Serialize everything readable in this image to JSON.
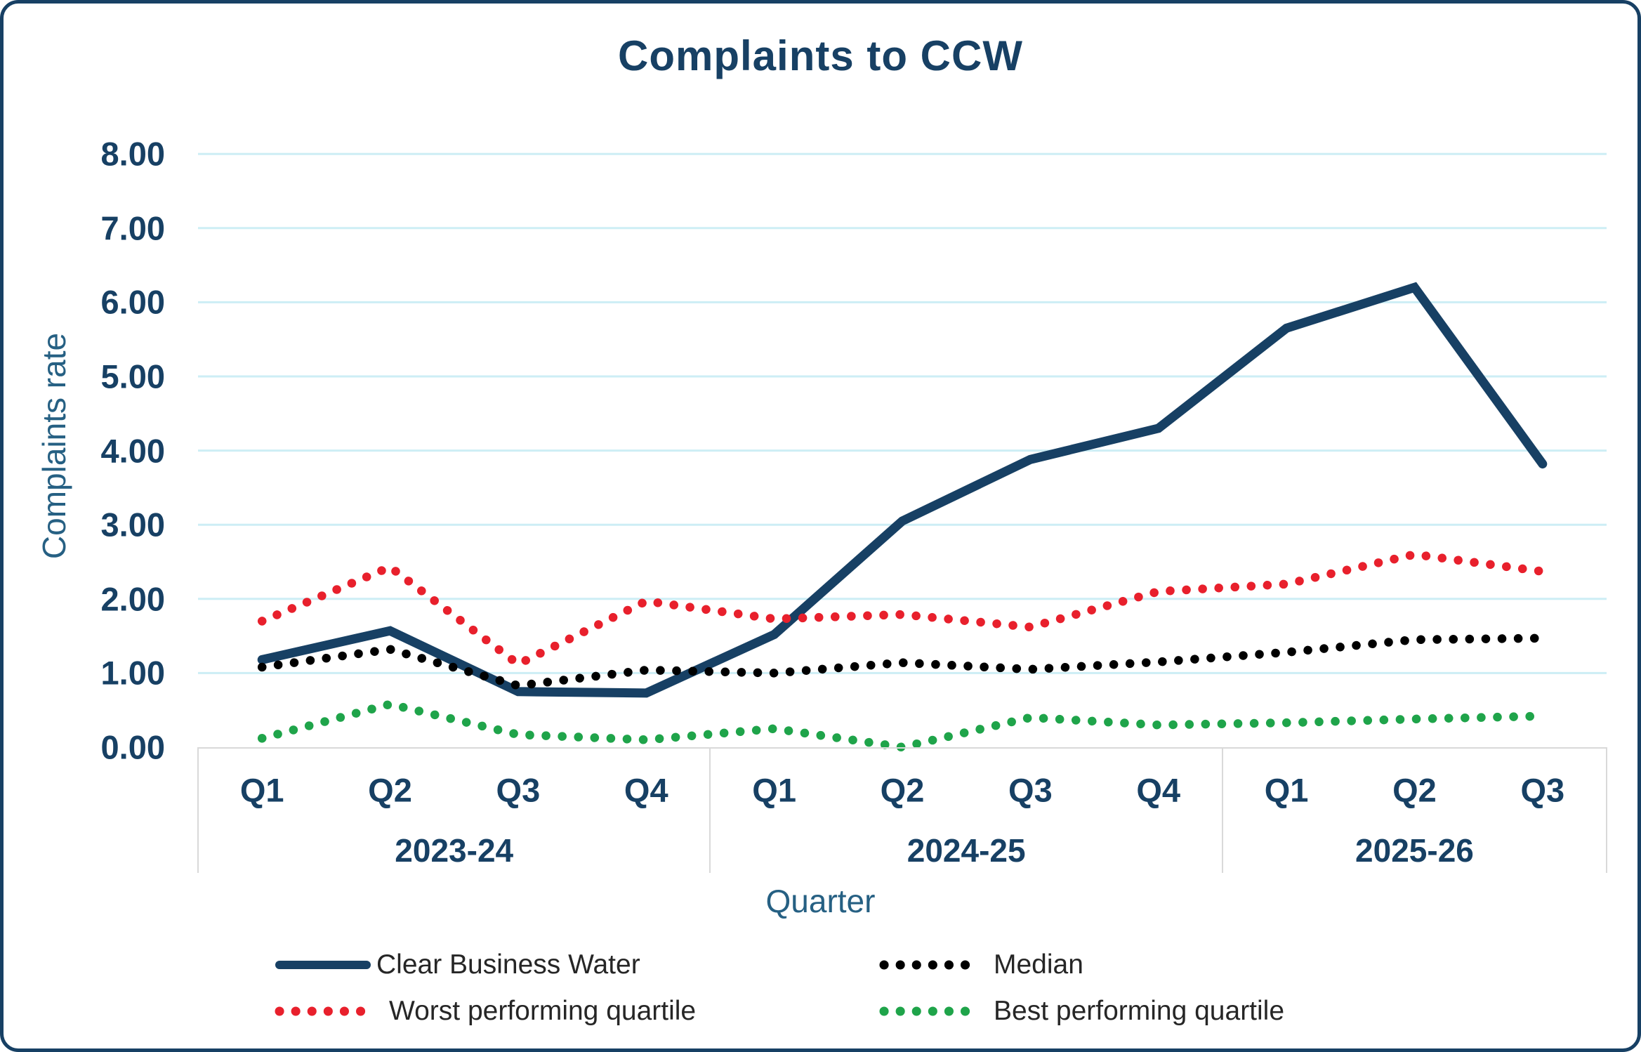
{
  "title": "Complaints to CCW",
  "y_axis": {
    "label": "Complaints rate",
    "ticks": [
      "8.00",
      "7.00",
      "6.00",
      "5.00",
      "4.00",
      "3.00",
      "2.00",
      "1.00",
      "0.00"
    ]
  },
  "x_axis": {
    "label": "Quarter",
    "groups": [
      {
        "label": "2023-24",
        "quarters": [
          "Q1",
          "Q2",
          "Q3",
          "Q4"
        ]
      },
      {
        "label": "2024-25",
        "quarters": [
          "Q1",
          "Q2",
          "Q3",
          "Q4"
        ]
      },
      {
        "label": "2025-26",
        "quarters": [
          "Q1",
          "Q2",
          "Q3"
        ]
      }
    ]
  },
  "legend": {
    "items": [
      {
        "label": "Clear Business Water",
        "style": "solid",
        "color": "#174064"
      },
      {
        "label": "Median",
        "style": "dotted",
        "color": "#000000"
      },
      {
        "label": "Worst performing quartile",
        "style": "dotted",
        "color": "#e8202c"
      },
      {
        "label": "Best performing quartile",
        "style": "dotted",
        "color": "#1fa44a"
      }
    ]
  },
  "colors": {
    "navy": "#174064",
    "red": "#e8202c",
    "green": "#1fa44a",
    "black": "#000000",
    "gridline": "#cdeef5",
    "strip_border": "#d9d9d9",
    "axis_title_text": "#266083",
    "legend_text": "#262626"
  },
  "chart_data": {
    "type": "line",
    "title": "Complaints to CCW",
    "xlabel": "Quarter",
    "ylabel": "Complaints rate",
    "ylim": [
      0,
      8
    ],
    "y_tick_step": 1.0,
    "grid": "horizontal",
    "legend_position": "bottom",
    "categories": [
      "Q1",
      "Q2",
      "Q3",
      "Q4",
      "Q1",
      "Q2",
      "Q3",
      "Q4",
      "Q1",
      "Q2",
      "Q3"
    ],
    "category_groups": [
      {
        "label": "2023-24",
        "span": 4
      },
      {
        "label": "2024-25",
        "span": 4
      },
      {
        "label": "2025-26",
        "span": 3
      }
    ],
    "series": [
      {
        "name": "Clear Business Water",
        "style": "solid",
        "color": "#174064",
        "values": [
          1.18,
          1.57,
          0.75,
          0.73,
          1.52,
          3.05,
          3.88,
          4.3,
          5.65,
          6.2,
          3.82
        ]
      },
      {
        "name": "Median",
        "style": "dotted",
        "color": "#000000",
        "values": [
          1.08,
          1.32,
          0.83,
          1.04,
          1.0,
          1.14,
          1.05,
          1.15,
          1.28,
          1.45,
          1.47
        ]
      },
      {
        "name": "Worst performing quartile",
        "style": "dotted",
        "color": "#e8202c",
        "values": [
          1.7,
          2.43,
          1.12,
          1.97,
          1.73,
          1.79,
          1.62,
          2.1,
          2.2,
          2.6,
          2.37
        ]
      },
      {
        "name": "Best performing quartile",
        "style": "dotted",
        "color": "#1fa44a",
        "values": [
          0.12,
          0.58,
          0.17,
          0.1,
          0.25,
          0.0,
          0.4,
          0.3,
          0.33,
          0.38,
          0.42
        ]
      }
    ]
  }
}
